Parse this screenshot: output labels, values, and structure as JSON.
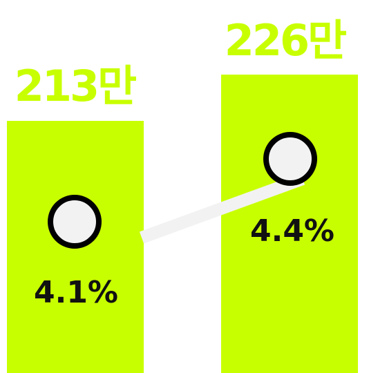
{
  "chart_data": {
    "type": "bar",
    "categories": [
      "",
      ""
    ],
    "series": [
      {
        "values": [
          213,
          226
        ],
        "labels": [
          "213만",
          "226만"
        ],
        "color": "#c8ff00"
      },
      {
        "values": [
          4.1,
          4.4
        ],
        "labels": [
          "4.1%",
          "4.4%"
        ],
        "type": "line",
        "color": "#f2f2f2"
      }
    ]
  }
}
